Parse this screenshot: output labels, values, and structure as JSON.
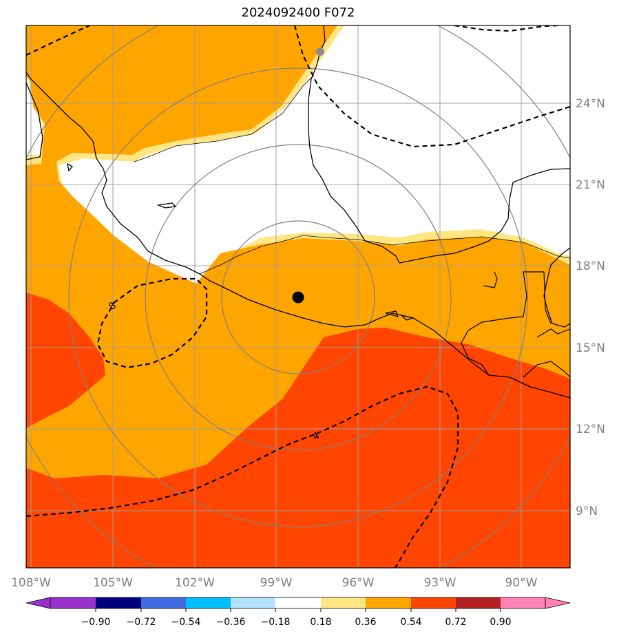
{
  "title": "2024092400 F072",
  "colors": {
    "white": "#ffffff",
    "light_yellow": "#ffe682",
    "orange": "#ffa500",
    "red_orange": "#ff4500",
    "dark_red": "#b22222",
    "pink": "#ff82b4",
    "purple": "#9932cc",
    "navy": "#000080",
    "royal_blue": "#4169e1",
    "deep_sky": "#00bfff",
    "light_blue": "#b4e1ff",
    "grid": "#a0a0a0",
    "ring": "#808080"
  },
  "map": {
    "lon_labels": [
      "108°W",
      "105°W",
      "102°W",
      "99°W",
      "96°W",
      "93°W",
      "90°W"
    ],
    "lat_labels": [
      "24°N",
      "21°N",
      "18°N",
      "15°N",
      "12°N",
      "9°N"
    ],
    "contour_labels": [
      "4",
      "8"
    ],
    "storm_center_icon": "storm-center-dot",
    "secondary_marker_icon": "gray-point-marker"
  },
  "colorbar": {
    "ticks": [
      "−0.90",
      "−0.72",
      "−0.54",
      "−0.36",
      "−0.18",
      "0.18",
      "0.36",
      "0.54",
      "0.72",
      "0.90"
    ],
    "segment_colors": [
      "#9932cc",
      "#000080",
      "#4169e1",
      "#00bfff",
      "#b4e1ff",
      "#ffffff",
      "#ffe682",
      "#ffa500",
      "#ff4500",
      "#b22222",
      "#ff82b4"
    ]
  }
}
